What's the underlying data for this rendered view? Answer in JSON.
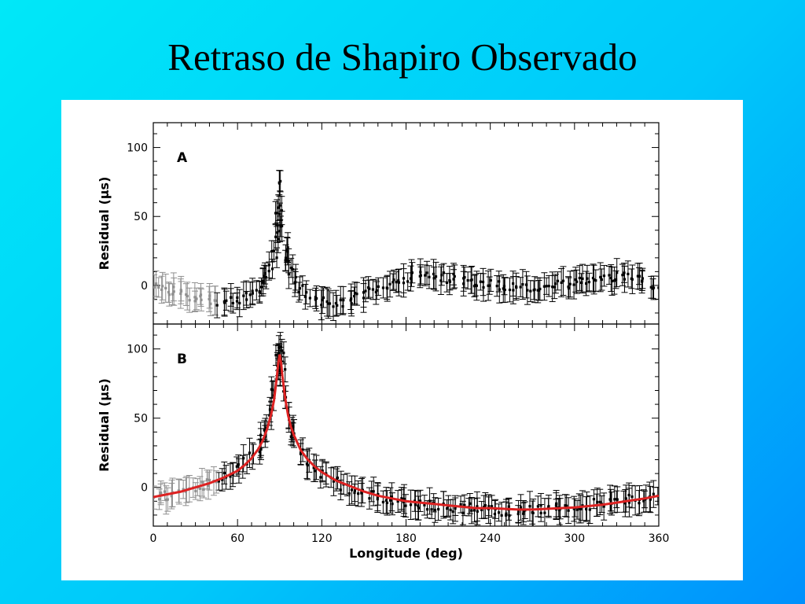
{
  "slide": {
    "title": "Retraso de Shapiro Observado"
  },
  "colors": {
    "fit_line": "#dd2222",
    "data_points": "#000000",
    "early_points": "#909090"
  },
  "chart_data": [
    {
      "type": "scatter",
      "panel_label": "A",
      "xlabel": "",
      "ylabel": "Residual (μs)",
      "xlim": [
        0,
        360
      ],
      "ylim": [
        -28,
        118
      ],
      "xticks": [
        0,
        60,
        120,
        180,
        240,
        300,
        360
      ],
      "yticks": [
        0,
        50,
        100
      ],
      "x_tick_labels_shown": false,
      "series": [
        {
          "error_bars": true,
          "error_magnitude": 8,
          "points": [
            [
              0,
              0
            ],
            [
              5,
              -2
            ],
            [
              10,
              -4
            ],
            [
              15,
              -4
            ],
            [
              20,
              -6
            ],
            [
              25,
              -8
            ],
            [
              30,
              -8
            ],
            [
              35,
              -9
            ],
            [
              40,
              -10
            ],
            [
              45,
              -11
            ],
            [
              50,
              -11
            ],
            [
              55,
              -10
            ],
            [
              60,
              -11
            ],
            [
              65,
              -9
            ],
            [
              70,
              -7
            ],
            [
              75,
              -4
            ],
            [
              78,
              0
            ],
            [
              81,
              6
            ],
            [
              84,
              13
            ],
            [
              86,
              22
            ],
            [
              88,
              35
            ],
            [
              89,
              55
            ],
            [
              90,
              75
            ],
            [
              91,
              55
            ],
            [
              92,
              40
            ],
            [
              94,
              26
            ],
            [
              96,
              17
            ],
            [
              98,
              10
            ],
            [
              100,
              4
            ],
            [
              105,
              -2
            ],
            [
              110,
              -7
            ],
            [
              115,
              -9
            ],
            [
              120,
              -11
            ],
            [
              125,
              -13
            ],
            [
              130,
              -13
            ],
            [
              135,
              -14
            ],
            [
              140,
              -12
            ],
            [
              145,
              -9
            ],
            [
              150,
              -6
            ],
            [
              155,
              -4
            ],
            [
              160,
              -2
            ],
            [
              165,
              1
            ],
            [
              170,
              3
            ],
            [
              175,
              4
            ],
            [
              180,
              5
            ],
            [
              185,
              6
            ],
            [
              190,
              7
            ],
            [
              195,
              7
            ],
            [
              200,
              6
            ],
            [
              205,
              6
            ],
            [
              210,
              5
            ],
            [
              215,
              5
            ],
            [
              220,
              4
            ],
            [
              225,
              4
            ],
            [
              230,
              3
            ],
            [
              235,
              2
            ],
            [
              240,
              1
            ],
            [
              245,
              0
            ],
            [
              250,
              -1
            ],
            [
              255,
              -1
            ],
            [
              260,
              -2
            ],
            [
              265,
              -2
            ],
            [
              270,
              -2
            ],
            [
              275,
              -2
            ],
            [
              280,
              -2
            ],
            [
              285,
              -1
            ],
            [
              290,
              0
            ],
            [
              295,
              0
            ],
            [
              300,
              1
            ],
            [
              305,
              2
            ],
            [
              310,
              3
            ],
            [
              315,
              4
            ],
            [
              320,
              5
            ],
            [
              325,
              5
            ],
            [
              330,
              6
            ],
            [
              335,
              6
            ],
            [
              340,
              5
            ],
            [
              345,
              4
            ],
            [
              350,
              3
            ],
            [
              355,
              1
            ],
            [
              360,
              0
            ]
          ]
        }
      ]
    },
    {
      "type": "scatter",
      "panel_label": "B",
      "xlabel": "Longitude (deg)",
      "ylabel": "Residual (μs)",
      "xlim": [
        0,
        360
      ],
      "ylim": [
        -28,
        118
      ],
      "xticks": [
        0,
        60,
        120,
        180,
        240,
        300,
        360
      ],
      "yticks": [
        0,
        50,
        100
      ],
      "x_tick_labels_shown": true,
      "series": [
        {
          "error_bars": true,
          "error_magnitude": 8,
          "points": [
            [
              0,
              -8
            ],
            [
              5,
              -7
            ],
            [
              10,
              -6
            ],
            [
              15,
              -5
            ],
            [
              20,
              -3
            ],
            [
              25,
              -2
            ],
            [
              30,
              0
            ],
            [
              35,
              2
            ],
            [
              40,
              4
            ],
            [
              45,
              6
            ],
            [
              50,
              8
            ],
            [
              55,
              11
            ],
            [
              60,
              14
            ],
            [
              65,
              18
            ],
            [
              70,
              23
            ],
            [
              75,
              29
            ],
            [
              78,
              36
            ],
            [
              81,
              44
            ],
            [
              84,
              55
            ],
            [
              86,
              68
            ],
            [
              88,
              85
            ],
            [
              89,
              95
            ],
            [
              90,
              100
            ],
            [
              91,
              95
            ],
            [
              92,
              82
            ],
            [
              94,
              66
            ],
            [
              96,
              52
            ],
            [
              98,
              43
            ],
            [
              100,
              36
            ],
            [
              105,
              26
            ],
            [
              110,
              19
            ],
            [
              115,
              14
            ],
            [
              120,
              10
            ],
            [
              125,
              7
            ],
            [
              130,
              4
            ],
            [
              135,
              1
            ],
            [
              140,
              -1
            ],
            [
              145,
              -3
            ],
            [
              150,
              -4
            ],
            [
              155,
              -6
            ],
            [
              160,
              -7
            ],
            [
              165,
              -8
            ],
            [
              170,
              -9
            ],
            [
              175,
              -10
            ],
            [
              180,
              -11
            ],
            [
              185,
              -11
            ],
            [
              190,
              -12
            ],
            [
              195,
              -13
            ],
            [
              200,
              -13
            ],
            [
              205,
              -14
            ],
            [
              210,
              -14
            ],
            [
              215,
              -15
            ],
            [
              220,
              -15
            ],
            [
              225,
              -15
            ],
            [
              230,
              -16
            ],
            [
              235,
              -16
            ],
            [
              240,
              -16
            ],
            [
              245,
              -16
            ],
            [
              250,
              -17
            ],
            [
              255,
              -17
            ],
            [
              260,
              -17
            ],
            [
              265,
              -17
            ],
            [
              270,
              -16
            ],
            [
              275,
              -16
            ],
            [
              280,
              -16
            ],
            [
              285,
              -15
            ],
            [
              290,
              -15
            ],
            [
              295,
              -14
            ],
            [
              300,
              -14
            ],
            [
              305,
              -13
            ],
            [
              310,
              -13
            ],
            [
              315,
              -12
            ],
            [
              320,
              -12
            ],
            [
              325,
              -11
            ],
            [
              330,
              -10
            ],
            [
              335,
              -10
            ],
            [
              340,
              -9
            ],
            [
              345,
              -8
            ],
            [
              350,
              -7
            ],
            [
              355,
              -7
            ],
            [
              360,
              -6
            ]
          ]
        },
        {
          "name": "",
          "style": "fit_line",
          "color": "#dd2222",
          "points": [
            [
              0,
              -7
            ],
            [
              10,
              -5
            ],
            [
              20,
              -3
            ],
            [
              30,
              0
            ],
            [
              40,
              3
            ],
            [
              50,
              7
            ],
            [
              60,
              12
            ],
            [
              65,
              16
            ],
            [
              70,
              21
            ],
            [
              75,
              28
            ],
            [
              78,
              34
            ],
            [
              81,
              42
            ],
            [
              84,
              53
            ],
            [
              86,
              63
            ],
            [
              88,
              80
            ],
            [
              89,
              90
            ],
            [
              90,
              96
            ],
            [
              91,
              90
            ],
            [
              92,
              80
            ],
            [
              94,
              64
            ],
            [
              96,
              52
            ],
            [
              98,
              44
            ],
            [
              100,
              38
            ],
            [
              105,
              27
            ],
            [
              110,
              20
            ],
            [
              115,
              15
            ],
            [
              120,
              11
            ],
            [
              130,
              5
            ],
            [
              140,
              1
            ],
            [
              150,
              -3
            ],
            [
              160,
              -6
            ],
            [
              170,
              -8
            ],
            [
              180,
              -10
            ],
            [
              190,
              -11
            ],
            [
              200,
              -12
            ],
            [
              210,
              -13
            ],
            [
              220,
              -14
            ],
            [
              230,
              -15
            ],
            [
              240,
              -15
            ],
            [
              250,
              -15.5
            ],
            [
              260,
              -16
            ],
            [
              270,
              -16
            ],
            [
              280,
              -15.5
            ],
            [
              290,
              -15
            ],
            [
              300,
              -14.5
            ],
            [
              310,
              -13.5
            ],
            [
              320,
              -12.5
            ],
            [
              330,
              -11
            ],
            [
              340,
              -9.5
            ],
            [
              350,
              -8
            ],
            [
              360,
              -6
            ]
          ]
        }
      ]
    }
  ]
}
